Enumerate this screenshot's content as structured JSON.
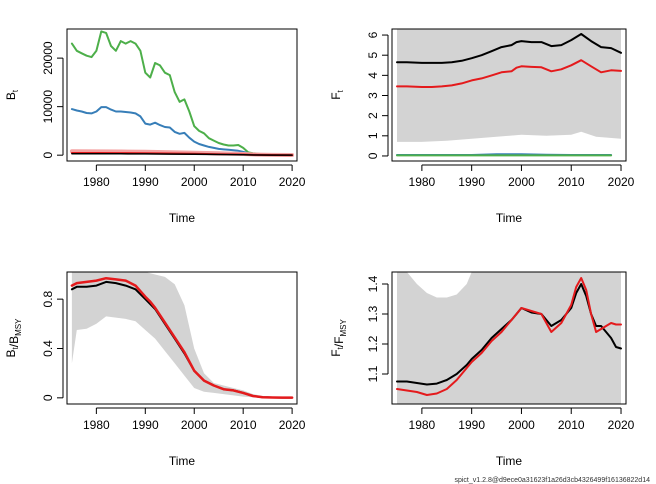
{
  "colors": {
    "band": "#d3d3d3",
    "estimate": "#000000",
    "red": "#e41a1c",
    "blue": "#377eb8",
    "green": "#4daf4a",
    "pink": "#f4a3a3"
  },
  "footer": "spict_v1.2.8@d9ece0a31623f1a26d3cb4326499f16136822d14",
  "chart_data": [
    {
      "type": "line",
      "xlabel": "Time",
      "ylabel": "B_t",
      "xlim": [
        1974,
        2021
      ],
      "ylim": [
        -1200,
        26000
      ],
      "xticks": [
        1980,
        1990,
        2000,
        2010,
        2020
      ],
      "yticks": [
        0,
        10000,
        20000
      ],
      "series": [
        {
          "color": "green",
          "width": 2,
          "x": [
            1975,
            1976,
            1977,
            1978,
            1979,
            1980,
            1981,
            1982,
            1983,
            1984,
            1985,
            1986,
            1987,
            1988,
            1989,
            1990,
            1991,
            1992,
            1993,
            1994,
            1995,
            1996,
            1997,
            1998,
            1999,
            2000,
            2001,
            2002,
            2003,
            2004,
            2005,
            2006,
            2007,
            2008,
            2009,
            2010,
            2011,
            2012,
            2013,
            2014,
            2015,
            2016,
            2017,
            2018
          ],
          "y": [
            23000,
            21500,
            21000,
            20500,
            20200,
            21500,
            25500,
            25200,
            22500,
            21500,
            23500,
            23000,
            23500,
            23000,
            21500,
            17000,
            16000,
            19000,
            18500,
            17000,
            16500,
            13000,
            11000,
            11500,
            9000,
            6000,
            5000,
            4500,
            3500,
            3000,
            2500,
            2200,
            2000,
            2000,
            2100,
            1500,
            600,
            400,
            300,
            200,
            150,
            120,
            100,
            90
          ]
        },
        {
          "color": "blue",
          "width": 2,
          "x": [
            1975,
            1976,
            1977,
            1978,
            1979,
            1980,
            1981,
            1982,
            1983,
            1984,
            1985,
            1986,
            1987,
            1988,
            1989,
            1990,
            1991,
            1992,
            1993,
            1994,
            1995,
            1996,
            1997,
            1998,
            1999,
            2000,
            2001,
            2002,
            2003,
            2004,
            2005,
            2006,
            2007,
            2008,
            2009,
            2010,
            2011,
            2012,
            2013,
            2014,
            2015,
            2016,
            2017,
            2018,
            2019
          ],
          "y": [
            9500,
            9200,
            9000,
            8700,
            8600,
            9000,
            9900,
            9900,
            9400,
            9000,
            9000,
            8900,
            8800,
            8600,
            8000,
            6500,
            6300,
            6700,
            6200,
            5800,
            5700,
            4800,
            4400,
            4600,
            3600,
            2800,
            2300,
            2000,
            1700,
            1500,
            1300,
            1200,
            1100,
            1000,
            900,
            700,
            400,
            300,
            200,
            150,
            120,
            100,
            80,
            70,
            60
          ]
        },
        {
          "color": "pink",
          "width": 4,
          "x": [
            1975,
            1980,
            1985,
            1990,
            1995,
            2000,
            2005,
            2010,
            2013,
            2016,
            2020
          ],
          "y": [
            800,
            780,
            750,
            700,
            620,
            520,
            400,
            250,
            120,
            60,
            40
          ]
        },
        {
          "color": "red",
          "width": 2,
          "x": [
            1975,
            1980,
            1985,
            1990,
            1995,
            2000,
            2005,
            2010,
            2013,
            2016,
            2020
          ],
          "y": [
            450,
            440,
            420,
            390,
            340,
            280,
            210,
            130,
            60,
            30,
            20
          ]
        },
        {
          "color": "estimate",
          "width": 1.5,
          "x": [
            1975,
            1980,
            1985,
            1990,
            1995,
            2000,
            2005,
            2010,
            2013,
            2016,
            2020
          ],
          "y": [
            300,
            290,
            280,
            260,
            230,
            190,
            140,
            80,
            40,
            20,
            10
          ]
        }
      ]
    },
    {
      "type": "line",
      "xlabel": "Time",
      "ylabel": "F_t",
      "xlim": [
        1974,
        2021
      ],
      "ylim": [
        -0.25,
        6.3
      ],
      "xticks": [
        1980,
        1990,
        2000,
        2010,
        2020
      ],
      "yticks": [
        0,
        1,
        2,
        3,
        4,
        5,
        6
      ],
      "band": {
        "x": [
          1975,
          1980,
          1985,
          1990,
          1995,
          2000,
          2005,
          2010,
          2012,
          2015,
          2020
        ],
        "lower": [
          0.7,
          0.7,
          0.75,
          0.85,
          0.95,
          1.05,
          1.0,
          1.05,
          1.2,
          0.95,
          0.85
        ],
        "upper": [
          6.3,
          6.3,
          6.3,
          6.3,
          6.3,
          6.3,
          6.3,
          6.3,
          6.3,
          6.3,
          6.3
        ]
      },
      "series": [
        {
          "color": "estimate",
          "width": 2,
          "x": [
            1975,
            1977,
            1980,
            1982,
            1984,
            1986,
            1988,
            1990,
            1992,
            1994,
            1996,
            1998,
            1999,
            2000,
            2002,
            2004,
            2006,
            2008,
            2010,
            2012,
            2014,
            2016,
            2018,
            2020
          ],
          "y": [
            4.65,
            4.65,
            4.62,
            4.62,
            4.62,
            4.65,
            4.72,
            4.85,
            5.0,
            5.2,
            5.4,
            5.5,
            5.65,
            5.7,
            5.65,
            5.65,
            5.45,
            5.5,
            5.75,
            6.05,
            5.7,
            5.4,
            5.35,
            5.12
          ]
        },
        {
          "color": "red",
          "width": 2,
          "x": [
            1975,
            1977,
            1980,
            1982,
            1984,
            1986,
            1988,
            1990,
            1992,
            1994,
            1996,
            1998,
            1999,
            2000,
            2002,
            2004,
            2006,
            2008,
            2010,
            2012,
            2014,
            2016,
            2018,
            2020
          ],
          "y": [
            3.45,
            3.45,
            3.42,
            3.42,
            3.45,
            3.5,
            3.6,
            3.75,
            3.85,
            4.0,
            4.15,
            4.2,
            4.38,
            4.45,
            4.42,
            4.4,
            4.2,
            4.3,
            4.5,
            4.75,
            4.45,
            4.15,
            4.25,
            4.22
          ]
        },
        {
          "color": "blue",
          "width": 2,
          "x": [
            1975,
            1990,
            1995,
            2000,
            2005,
            2010,
            2018
          ],
          "y": [
            0.05,
            0.05,
            0.08,
            0.08,
            0.06,
            0.05,
            0.05
          ]
        },
        {
          "color": "green",
          "width": 2,
          "x": [
            1975,
            1990,
            2000,
            2010,
            2018
          ],
          "y": [
            0.03,
            0.03,
            0.03,
            0.03,
            0.03
          ]
        }
      ]
    },
    {
      "type": "line",
      "xlabel": "Time",
      "ylabel": "B_t/B_MSY",
      "xlim": [
        1974,
        2021
      ],
      "ylim": [
        -0.05,
        1.02
      ],
      "xticks": [
        1980,
        1990,
        2000,
        2010,
        2020
      ],
      "yticks": [
        0.0,
        0.4,
        0.8
      ],
      "band": {
        "x": [
          1975,
          1976,
          1978,
          1980,
          1982,
          1984,
          1986,
          1988,
          1990,
          1992,
          1994,
          1996,
          1998,
          2000,
          2002,
          2004,
          2006,
          2008,
          2010,
          2012,
          2014,
          2016,
          2018,
          2020
        ],
        "lower": [
          0.28,
          0.55,
          0.56,
          0.6,
          0.66,
          0.65,
          0.64,
          0.62,
          0.55,
          0.48,
          0.38,
          0.28,
          0.18,
          0.08,
          0.05,
          0.04,
          0.03,
          0.02,
          0.01,
          0.005,
          0.002,
          0.001,
          0.001,
          0.001
        ],
        "upper": [
          1.02,
          1.02,
          1.02,
          1.02,
          1.02,
          1.02,
          1.02,
          1.02,
          1.02,
          1.0,
          0.98,
          0.92,
          0.75,
          0.4,
          0.2,
          0.12,
          0.1,
          0.08,
          0.06,
          0.03,
          0.015,
          0.008,
          0.005,
          0.004
        ]
      },
      "series": [
        {
          "color": "estimate",
          "width": 2,
          "x": [
            1975,
            1976,
            1978,
            1980,
            1982,
            1984,
            1986,
            1988,
            1990,
            1991,
            1992,
            1994,
            1996,
            1998,
            2000,
            2002,
            2004,
            2006,
            2008,
            2010,
            2012,
            2014,
            2016,
            2018,
            2020
          ],
          "y": [
            0.88,
            0.9,
            0.9,
            0.91,
            0.94,
            0.93,
            0.91,
            0.88,
            0.8,
            0.76,
            0.72,
            0.6,
            0.48,
            0.36,
            0.22,
            0.14,
            0.1,
            0.07,
            0.06,
            0.04,
            0.015,
            0.005,
            0.003,
            0.002,
            0.002
          ]
        },
        {
          "color": "red",
          "width": 2.5,
          "x": [
            1975,
            1976,
            1978,
            1980,
            1982,
            1984,
            1986,
            1988,
            1990,
            1991,
            1992,
            1994,
            1996,
            1998,
            2000,
            2002,
            2004,
            2006,
            2008,
            2010,
            2012,
            2014,
            2016,
            2018,
            2020
          ],
          "y": [
            0.91,
            0.93,
            0.94,
            0.95,
            0.97,
            0.96,
            0.95,
            0.91,
            0.82,
            0.78,
            0.73,
            0.61,
            0.49,
            0.37,
            0.22,
            0.14,
            0.1,
            0.07,
            0.06,
            0.04,
            0.015,
            0.005,
            0.003,
            0.002,
            0.002
          ]
        }
      ]
    },
    {
      "type": "line",
      "xlabel": "Time",
      "ylabel": "F_t/F_MSY",
      "xlim": [
        1974,
        2021
      ],
      "ylim": [
        1.0,
        1.44
      ],
      "xticks": [
        1980,
        1990,
        2000,
        2010,
        2020
      ],
      "yticks": [
        1.1,
        1.2,
        1.3,
        1.4
      ],
      "band": {
        "x": [
          1975,
          1977,
          1979,
          1981,
          1983,
          1985,
          1987,
          1989,
          1990,
          1991,
          2020
        ],
        "lower": [
          1.0,
          1.0,
          1.0,
          1.0,
          1.0,
          1.0,
          1.0,
          1.0,
          1.0,
          1.0,
          1.0
        ],
        "upper": [
          1.44,
          1.44,
          1.4,
          1.37,
          1.355,
          1.355,
          1.365,
          1.4,
          1.44,
          1.44,
          1.44
        ]
      },
      "series": [
        {
          "color": "estimate",
          "width": 2,
          "x": [
            1975,
            1977,
            1979,
            1981,
            1983,
            1985,
            1987,
            1989,
            1990,
            1992,
            1994,
            1996,
            1998,
            1999,
            2000,
            2002,
            2004,
            2006,
            2008,
            2010,
            2011,
            2012,
            2013,
            2014,
            2015,
            2016,
            2017,
            2018,
            2019,
            2020
          ],
          "y": [
            1.075,
            1.075,
            1.07,
            1.065,
            1.068,
            1.08,
            1.1,
            1.13,
            1.15,
            1.18,
            1.22,
            1.25,
            1.28,
            1.3,
            1.32,
            1.305,
            1.3,
            1.26,
            1.28,
            1.32,
            1.37,
            1.4,
            1.36,
            1.3,
            1.26,
            1.26,
            1.24,
            1.22,
            1.19,
            1.185
          ]
        },
        {
          "color": "red",
          "width": 2,
          "x": [
            1975,
            1977,
            1979,
            1981,
            1983,
            1985,
            1987,
            1989,
            1990,
            1992,
            1994,
            1996,
            1998,
            1999,
            2000,
            2002,
            2004,
            2006,
            2008,
            2010,
            2011,
            2012,
            2013,
            2014,
            2015,
            2016,
            2017,
            2018,
            2019,
            2020
          ],
          "y": [
            1.05,
            1.045,
            1.04,
            1.03,
            1.035,
            1.05,
            1.08,
            1.12,
            1.14,
            1.17,
            1.21,
            1.24,
            1.28,
            1.3,
            1.32,
            1.31,
            1.3,
            1.24,
            1.27,
            1.33,
            1.39,
            1.42,
            1.38,
            1.3,
            1.24,
            1.25,
            1.26,
            1.27,
            1.265,
            1.265
          ]
        }
      ]
    }
  ]
}
